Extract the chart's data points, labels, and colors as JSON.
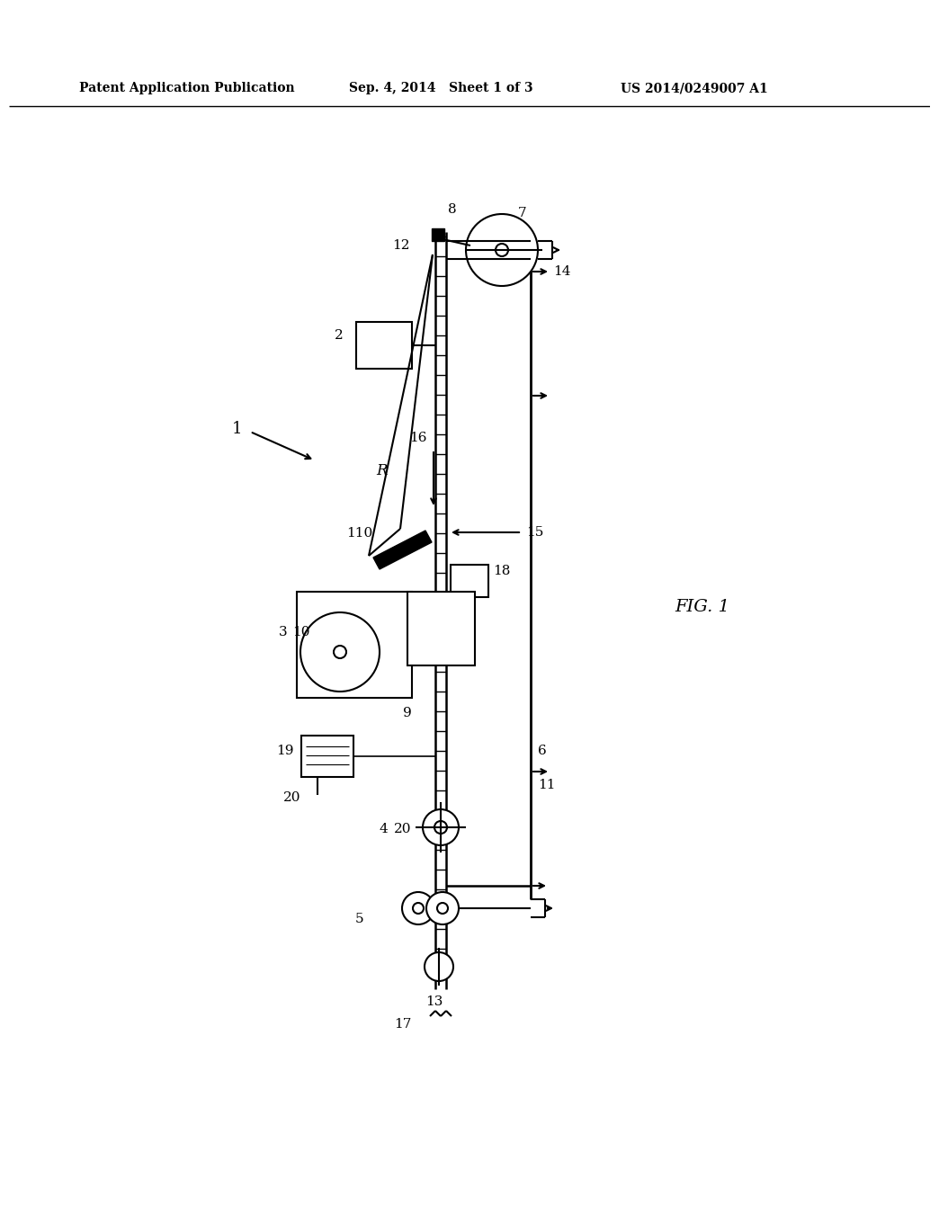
{
  "background_color": "#ffffff",
  "header_left": "Patent Application Publication",
  "header_mid": "Sep. 4, 2014   Sheet 1 of 3",
  "header_right": "US 2014/0249007 A1",
  "fig_label": "FIG. 1"
}
